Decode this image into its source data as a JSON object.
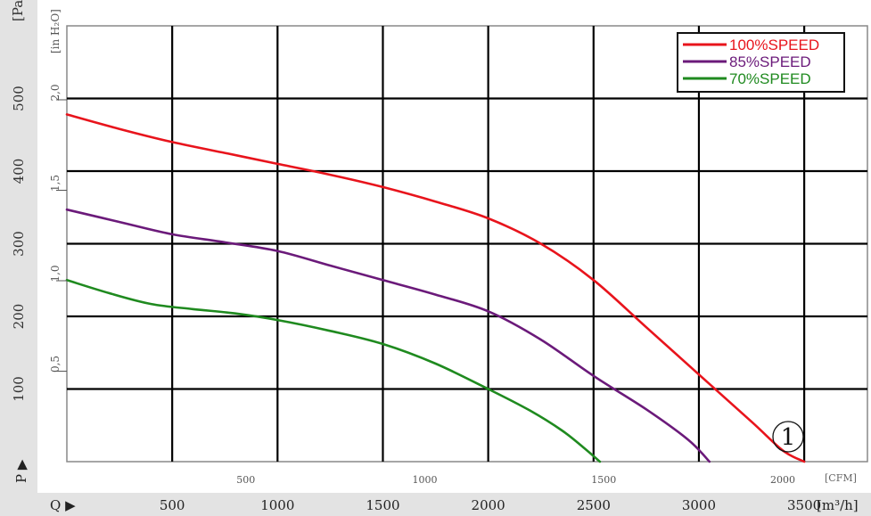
{
  "chart_data": {
    "type": "line",
    "title": "",
    "curve_label": "①",
    "xlabel_primary": "Q ▶",
    "xunit_primary": "[m³/h]",
    "xunit_secondary": "[CFM]",
    "ylabel_primary": "P ▶",
    "yunit_primary": "[Pa]",
    "yunit_secondary": "[in H₂O]",
    "xlim": [
      0,
      3800
    ],
    "ylim": [
      0,
      600
    ],
    "x_ticks": [
      500,
      1000,
      1500,
      2000,
      2500,
      3000,
      3500
    ],
    "y_ticks": [
      100,
      200,
      300,
      400,
      500
    ],
    "cfm_ticks": [
      500,
      1000,
      1500,
      2000
    ],
    "inh2o_ticks": [
      "0,5",
      "1,0",
      "1,5",
      "2,0"
    ],
    "inh2o_tick_values": [
      0.5,
      1.0,
      1.5,
      2.0
    ],
    "grid": true,
    "legend_position": "top-right",
    "series": [
      {
        "name": "100%SPEED",
        "color": "#e8141c",
        "x": [
          0,
          250,
          500,
          750,
          1000,
          1250,
          1500,
          1750,
          2000,
          2250,
          2500,
          2750,
          3000,
          3250,
          3400,
          3500
        ],
        "y": [
          478,
          458,
          440,
          425,
          410,
          395,
          378,
          358,
          335,
          300,
          250,
          185,
          120,
          55,
          15,
          0
        ]
      },
      {
        "name": "85%SPEED",
        "color": "#6b1a7a",
        "x": [
          0,
          250,
          500,
          750,
          1000,
          1250,
          1500,
          1750,
          2000,
          2250,
          2500,
          2750,
          2950,
          3050
        ],
        "y": [
          347,
          330,
          313,
          302,
          290,
          270,
          250,
          230,
          207,
          168,
          118,
          72,
          30,
          0
        ]
      },
      {
        "name": "70%SPEED",
        "color": "#1f8a1f",
        "x": [
          0,
          200,
          400,
          600,
          800,
          1000,
          1250,
          1500,
          1750,
          2000,
          2200,
          2350,
          2450,
          2530
        ],
        "y": [
          250,
          232,
          217,
          210,
          204,
          195,
          180,
          162,
          135,
          100,
          70,
          43,
          20,
          0
        ]
      }
    ]
  }
}
